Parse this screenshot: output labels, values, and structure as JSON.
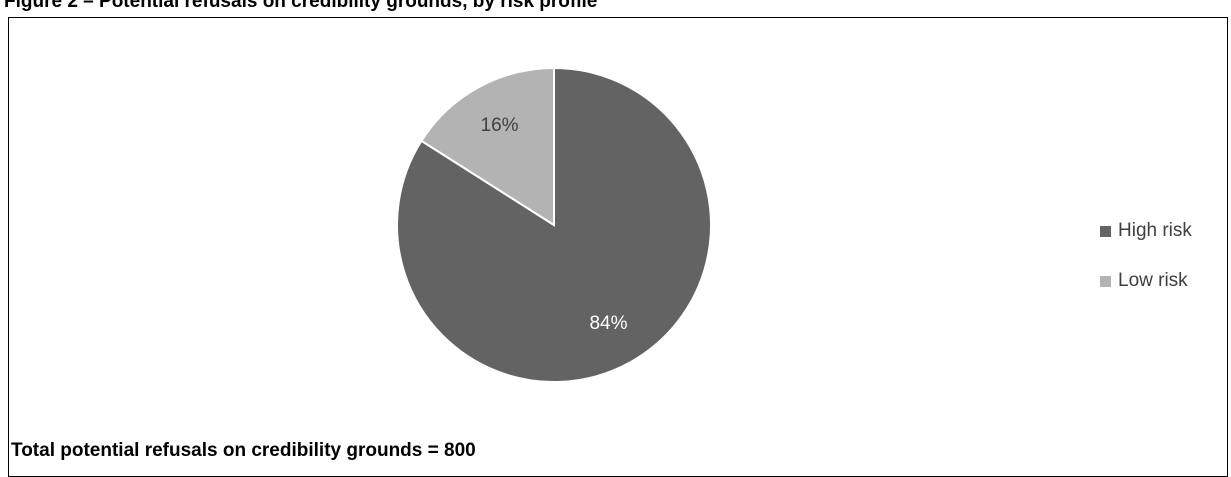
{
  "figure_title": "Figure 2 – Potential refusals on credibility grounds, by risk profile",
  "footnote": "Total potential refusals on credibility grounds = 800",
  "chart_data": {
    "type": "pie",
    "categories": [
      "High risk",
      "Low risk"
    ],
    "values": [
      84,
      16
    ],
    "labels": [
      "84%",
      "16%"
    ],
    "colors": [
      "#636363",
      "#b3b3b3"
    ],
    "label_colors": [
      "#ffffff",
      "#404040"
    ],
    "legend": {
      "placement": "right",
      "entries": [
        "High risk",
        "Low risk"
      ]
    },
    "start_angle": "12 o'clock",
    "direction": "clockwise"
  }
}
